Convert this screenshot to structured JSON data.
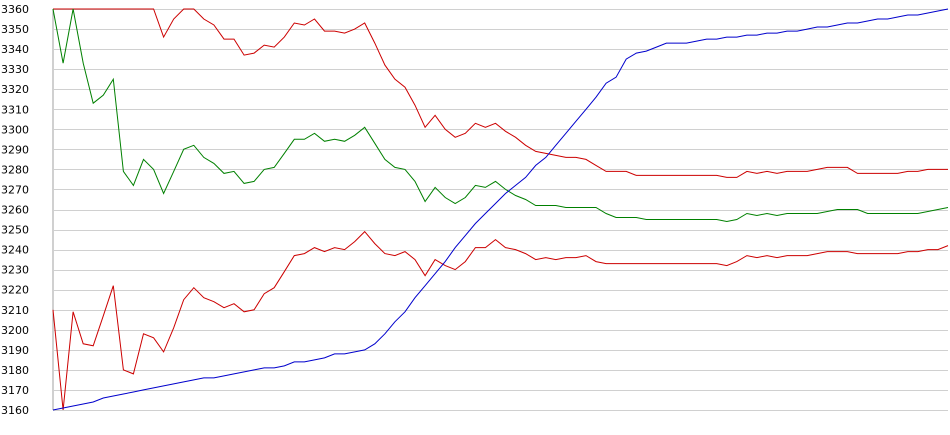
{
  "chart_data": {
    "type": "line",
    "title": "",
    "xlabel": "",
    "ylabel": "",
    "ylim": [
      3160,
      3360
    ],
    "yticks": [
      3160,
      3170,
      3180,
      3190,
      3200,
      3210,
      3220,
      3230,
      3240,
      3250,
      3260,
      3270,
      3280,
      3290,
      3300,
      3310,
      3320,
      3330,
      3340,
      3350,
      3360
    ],
    "grid": true,
    "legend": "none",
    "x": [
      0,
      1,
      2,
      3,
      4,
      5,
      6,
      7,
      8,
      9,
      10,
      11,
      12,
      13,
      14,
      15,
      16,
      17,
      18,
      19,
      20,
      21,
      22,
      23,
      24,
      25,
      26,
      27,
      28,
      29,
      30,
      31,
      32,
      33,
      34,
      35,
      36,
      37,
      38,
      39,
      40,
      41,
      42,
      43,
      44,
      45,
      46,
      47,
      48,
      49,
      50,
      51,
      52,
      53,
      54,
      55,
      56,
      57,
      58,
      59,
      60,
      61,
      62,
      63,
      64,
      65,
      66,
      67,
      68,
      69,
      70,
      71,
      72,
      73,
      74,
      75,
      76,
      77,
      78,
      79,
      80,
      81,
      82,
      83,
      84,
      85,
      86,
      87,
      88,
      89
    ],
    "series": [
      {
        "color": "#cc0000",
        "values": [
          3360,
          3360,
          3360,
          3360,
          3360,
          3360,
          3360,
          3360,
          3360,
          3360,
          3360,
          3346,
          3355,
          3360,
          3360,
          3355,
          3352,
          3345,
          3345,
          3337,
          3338,
          3342,
          3341,
          3346,
          3353,
          3352,
          3355,
          3349,
          3349,
          3348,
          3350,
          3353,
          3343,
          3332,
          3325,
          3321,
          3312,
          3301,
          3307,
          3300,
          3296,
          3298,
          3303,
          3301,
          3303,
          3299,
          3296,
          3292,
          3289,
          3288,
          3287,
          3286,
          3286,
          3285,
          3282,
          3279,
          3279,
          3279,
          3277,
          3277,
          3277,
          3277,
          3277,
          3277,
          3277,
          3277,
          3277,
          3276,
          3276,
          3279,
          3278,
          3279,
          3278,
          3279,
          3279,
          3279,
          3280,
          3281,
          3281,
          3281,
          3278,
          3278,
          3278,
          3278,
          3278,
          3279,
          3279,
          3280,
          3280,
          3280
        ]
      },
      {
        "color": "#008000",
        "values": [
          3360,
          3333,
          3360,
          3333,
          3313,
          3317,
          3325,
          3279,
          3272,
          3285,
          3280,
          3268,
          3279,
          3290,
          3292,
          3286,
          3283,
          3278,
          3279,
          3273,
          3274,
          3280,
          3281,
          3288,
          3295,
          3295,
          3298,
          3294,
          3295,
          3294,
          3297,
          3301,
          3293,
          3285,
          3281,
          3280,
          3274,
          3264,
          3271,
          3266,
          3263,
          3266,
          3272,
          3271,
          3274,
          3270,
          3267,
          3265,
          3262,
          3262,
          3262,
          3261,
          3261,
          3261,
          3261,
          3258,
          3256,
          3256,
          3256,
          3255,
          3255,
          3255,
          3255,
          3255,
          3255,
          3255,
          3255,
          3254,
          3255,
          3258,
          3257,
          3258,
          3257,
          3258,
          3258,
          3258,
          3258,
          3259,
          3260,
          3260,
          3260,
          3258,
          3258,
          3258,
          3258,
          3258,
          3258,
          3259,
          3260,
          3261
        ]
      },
      {
        "color": "#cc0000",
        "values": [
          3210,
          3160,
          3209,
          3193,
          3192,
          3207,
          3222,
          3180,
          3178,
          3198,
          3196,
          3189,
          3201,
          3215,
          3221,
          3216,
          3214,
          3211,
          3213,
          3209,
          3210,
          3218,
          3221,
          3229,
          3237,
          3238,
          3241,
          3239,
          3241,
          3240,
          3244,
          3249,
          3243,
          3238,
          3237,
          3239,
          3235,
          3227,
          3235,
          3232,
          3230,
          3234,
          3241,
          3241,
          3245,
          3241,
          3240,
          3238,
          3235,
          3236,
          3235,
          3236,
          3236,
          3237,
          3234,
          3233,
          3233,
          3233,
          3233,
          3233,
          3233,
          3233,
          3233,
          3233,
          3233,
          3233,
          3233,
          3232,
          3234,
          3237,
          3236,
          3237,
          3236,
          3237,
          3237,
          3237,
          3238,
          3239,
          3239,
          3239,
          3238,
          3238,
          3238,
          3238,
          3238,
          3239,
          3239,
          3240,
          3240,
          3242
        ]
      },
      {
        "color": "#0000cc",
        "values": [
          3160,
          3161,
          3162,
          3163,
          3164,
          3166,
          3167,
          3168,
          3169,
          3170,
          3171,
          3172,
          3173,
          3174,
          3175,
          3176,
          3176,
          3177,
          3178,
          3179,
          3180,
          3181,
          3181,
          3182,
          3184,
          3184,
          3185,
          3186,
          3188,
          3188,
          3189,
          3190,
          3193,
          3198,
          3204,
          3209,
          3216,
          3222,
          3228,
          3234,
          3241,
          3247,
          3253,
          3258,
          3263,
          3268,
          3272,
          3276,
          3282,
          3286,
          3292,
          3298,
          3304,
          3310,
          3316,
          3323,
          3326,
          3335,
          3338,
          3339,
          3341,
          3343,
          3343,
          3343,
          3344,
          3345,
          3345,
          3346,
          3346,
          3347,
          3347,
          3348,
          3348,
          3349,
          3349,
          3350,
          3351,
          3351,
          3352,
          3353,
          3353,
          3354,
          3355,
          3355,
          3356,
          3357,
          3357,
          3358,
          3359,
          3360
        ]
      }
    ]
  }
}
